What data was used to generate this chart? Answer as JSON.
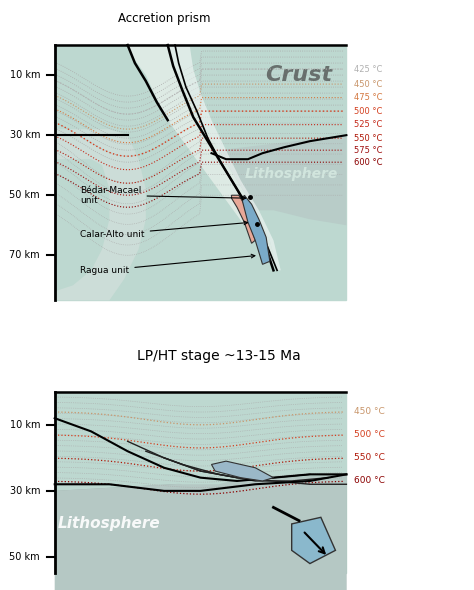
{
  "top_panel": {
    "title": "Accretion prism",
    "crust_label": "Crust",
    "litho_label": "Lithosphere",
    "depth_ticks": [
      10,
      30,
      50,
      70
    ],
    "temp_labels_top": [
      "425 °C",
      "450 °C",
      "475 °C",
      "500 °C",
      "525 °C",
      "550 °C",
      "575 °C",
      "600 °C"
    ],
    "temp_colors_top": [
      "#b0b0b0",
      "#c8956a",
      "#d47840",
      "#d44020",
      "#c42818",
      "#b01808",
      "#a01010",
      "#8b0000"
    ],
    "unit_labels": [
      "Bédar-Macael\nunit",
      "Calar-Alto unit",
      "Ragua unit"
    ]
  },
  "bottom_panel": {
    "title": "LP/HT stage ~13-15 Ma",
    "litho_label": "Lithosphere",
    "depth_ticks": [
      10,
      30,
      50
    ],
    "temp_labels_bot": [
      "450 °C",
      "500 °C",
      "550 °C",
      "600 °C"
    ],
    "temp_colors_bot": [
      "#c8956a",
      "#d44020",
      "#b01808",
      "#8b0000"
    ]
  },
  "colors": {
    "crust_teal": "#bdd8d0",
    "litho_teal_light": "#c8ddd7",
    "litho_gray": "#a0b0ac",
    "litho_gray_dark": "#8a9e9a",
    "slab_blue": "#7aaac8",
    "slab_pink": "#e8a898",
    "slab_blue2": "#8ab8cc",
    "background": "#ffffff"
  }
}
